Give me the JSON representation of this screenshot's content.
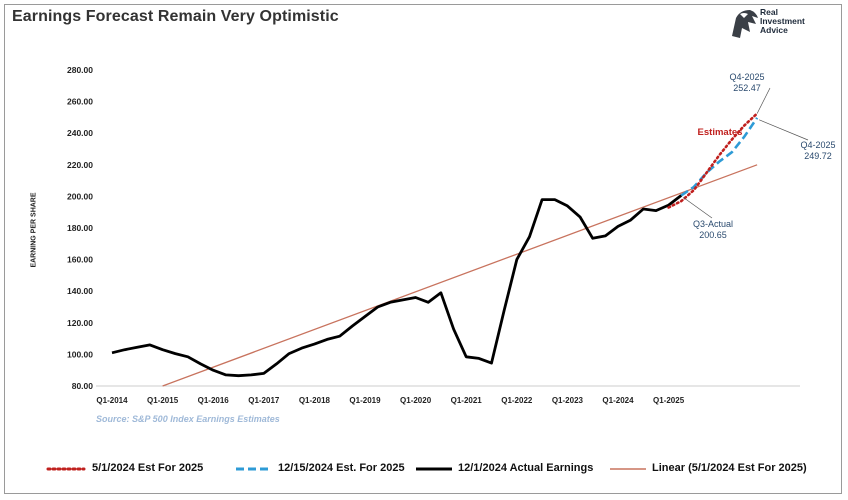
{
  "title": "Earnings Forecast Remain Very Optimistic",
  "logo": {
    "line1": "Real",
    "line2": "Investment",
    "line3": "Advice"
  },
  "source": "Source: S&P 500 Index Earnings Estimates",
  "colors": {
    "actual": "#000000",
    "est_may": "#c0201e",
    "est_dec": "#2e9bd6",
    "linear": "#c8735e",
    "estimates_label": "#c0201e",
    "annotation": "#2a4a6e"
  },
  "chart_data": {
    "type": "line",
    "ylabel": "EARNING PER SHARE",
    "ylim": [
      80,
      280
    ],
    "yticks": [
      "280.00",
      "260.00",
      "240.00",
      "220.00",
      "200.00",
      "180.00",
      "160.00",
      "140.00",
      "120.00",
      "100.00",
      "80.00"
    ],
    "ytick_values": [
      280,
      260,
      240,
      220,
      200,
      180,
      160,
      140,
      120,
      100,
      80
    ],
    "xticks": [
      "Q1-2014",
      "Q1-2015",
      "Q1-2016",
      "Q1-2017",
      "Q1-2018",
      "Q1-2019",
      "Q1-2020",
      "Q1-2021",
      "Q1-2022",
      "Q1-2023",
      "Q1-2024",
      "Q1-2025"
    ],
    "x_quarter_count": 48,
    "series": [
      {
        "name": "12/1/2024 Actual Earnings",
        "style": "solid",
        "points": [
          [
            0,
            101
          ],
          [
            1,
            103
          ],
          [
            2,
            104.5
          ],
          [
            3,
            106
          ],
          [
            4,
            103
          ],
          [
            5,
            100.5
          ],
          [
            6,
            98.5
          ],
          [
            7,
            94
          ],
          [
            8,
            90
          ],
          [
            9,
            87
          ],
          [
            10,
            86.5
          ],
          [
            11,
            87
          ],
          [
            12,
            88
          ],
          [
            13,
            94
          ],
          [
            14,
            100.5
          ],
          [
            15,
            104
          ],
          [
            16,
            106.5
          ],
          [
            17,
            109.5
          ],
          [
            18,
            111.5
          ],
          [
            19,
            118
          ],
          [
            20,
            124
          ],
          [
            21,
            130
          ],
          [
            22,
            133
          ],
          [
            23,
            134.5
          ],
          [
            24,
            136
          ],
          [
            25,
            133
          ],
          [
            26,
            139
          ],
          [
            27,
            116
          ],
          [
            28,
            98.5
          ],
          [
            29,
            97.5
          ],
          [
            30,
            94.5
          ],
          [
            31,
            128
          ],
          [
            32,
            160
          ],
          [
            33,
            174.5
          ],
          [
            34,
            198
          ],
          [
            35,
            198
          ],
          [
            36,
            194
          ],
          [
            37,
            187
          ],
          [
            38,
            173.5
          ],
          [
            39,
            175
          ],
          [
            40,
            181
          ],
          [
            41,
            185
          ],
          [
            42,
            192
          ],
          [
            43,
            191
          ],
          [
            44,
            194.5
          ],
          [
            45,
            200.65
          ]
        ]
      },
      {
        "name": "5/1/2024 Est For 2025",
        "style": "dotted",
        "points": [
          [
            44,
            193
          ],
          [
            45,
            197
          ],
          [
            46,
            204
          ],
          [
            47,
            215
          ],
          [
            48,
            226
          ],
          [
            49,
            236
          ],
          [
            50,
            245
          ],
          [
            51,
            252.47
          ]
        ]
      },
      {
        "name": "12/15/2024 Est. For 2025",
        "style": "dashed",
        "points": [
          [
            45,
            200.65
          ],
          [
            46,
            206
          ],
          [
            47,
            215
          ],
          [
            48,
            222
          ],
          [
            49,
            228
          ],
          [
            50,
            238
          ],
          [
            51,
            249.72
          ]
        ]
      },
      {
        "name": "Linear (5/1/2024 Est For 2025)",
        "style": "trend",
        "points": [
          [
            4,
            80
          ],
          [
            51,
            220
          ]
        ]
      }
    ],
    "annotations": [
      {
        "id": "q4-2025-high",
        "line1": "Q4-2025",
        "line2": "252.47"
      },
      {
        "id": "q4-2025-low",
        "line1": "Q4-2025",
        "line2": "249.72"
      },
      {
        "id": "q3-actual",
        "line1": "Q3-Actual",
        "line2": "200.65"
      },
      {
        "id": "estimates",
        "line1": "Estimates"
      }
    ],
    "legend_position": "bottom",
    "grid": false
  },
  "legend": [
    {
      "label": "5/1/2024 Est For 2025",
      "style": "dotted"
    },
    {
      "label": "12/15/2024 Est. For 2025",
      "style": "dashed"
    },
    {
      "label": "12/1/2024 Actual Earnings",
      "style": "solid"
    },
    {
      "label": "Linear (5/1/2024 Est For 2025)",
      "style": "trend"
    }
  ]
}
